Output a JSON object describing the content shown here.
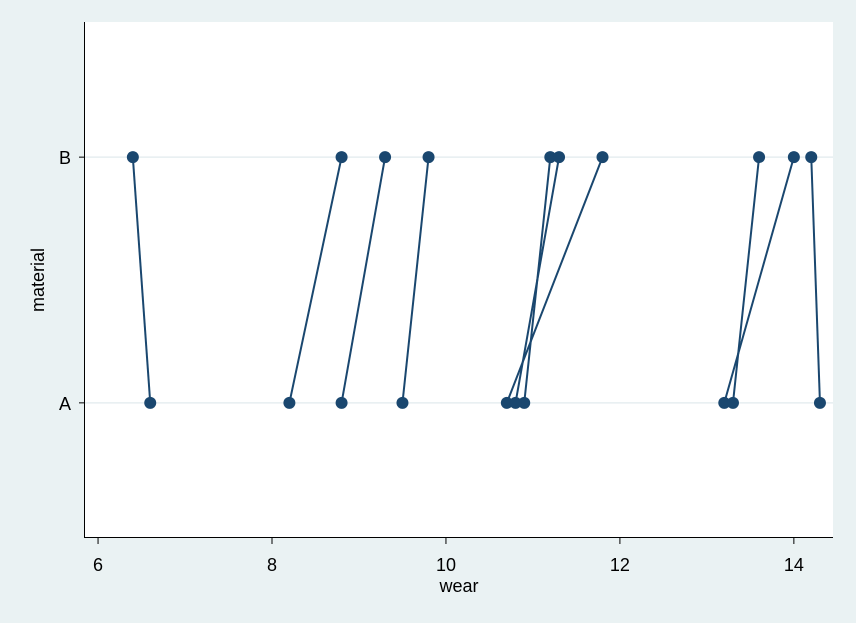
{
  "chart_data": {
    "type": "scatter",
    "xlabel": "wear",
    "ylabel": "material",
    "xlim": [
      5.85,
      14.45
    ],
    "ylim": [
      0.45,
      2.55
    ],
    "x_ticks": [
      6,
      8,
      10,
      12,
      14
    ],
    "y_ticks": [
      {
        "value": 1,
        "label": "A"
      },
      {
        "value": 2,
        "label": "B"
      }
    ],
    "grid": true,
    "legend": "none",
    "marker_color": "#1a476f",
    "pairs": [
      {
        "A": 13.2,
        "B": 14.0
      },
      {
        "A": 8.2,
        "B": 8.8
      },
      {
        "A": 10.9,
        "B": 11.2
      },
      {
        "A": 14.3,
        "B": 14.2
      },
      {
        "A": 10.7,
        "B": 11.8
      },
      {
        "A": 6.6,
        "B": 6.4
      },
      {
        "A": 9.5,
        "B": 9.8
      },
      {
        "A": 10.8,
        "B": 11.3
      },
      {
        "A": 8.8,
        "B": 9.3
      },
      {
        "A": 13.3,
        "B": 13.6
      }
    ]
  }
}
